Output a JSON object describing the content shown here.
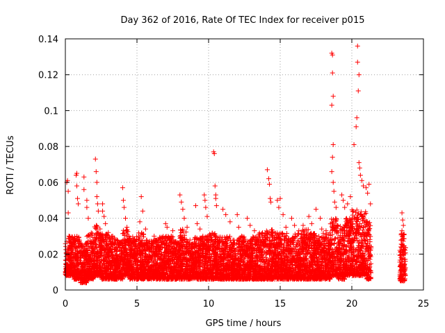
{
  "chart_data": {
    "type": "scatter",
    "title": "Day 362 of 2016, Rate Of TEC Index for receiver p015",
    "xlabel": "GPS time / hours",
    "ylabel": "ROTI / TECUs",
    "xlim": [
      0,
      25
    ],
    "ylim": [
      0,
      0.14
    ],
    "x_ticks": [
      0,
      5,
      10,
      15,
      20,
      25
    ],
    "x_tick_labels": [
      "0",
      "5",
      "10",
      "15",
      "20",
      "25"
    ],
    "y_ticks": [
      0,
      0.02,
      0.04,
      0.06,
      0.08,
      0.1,
      0.12,
      0.14
    ],
    "y_tick_labels": [
      "0",
      "0.02",
      "0.04",
      "0.06",
      "0.08",
      "0.1",
      "0.12",
      "0.14"
    ],
    "grid": true,
    "marker": "+",
    "color": "#ff0000",
    "series": [
      {
        "name": "ROTI",
        "points": [
          [
            0.1,
            0.027
          ],
          [
            0.1,
            0.06
          ],
          [
            0.15,
            0.061
          ],
          [
            0.2,
            0.055
          ],
          [
            0.2,
            0.043
          ],
          [
            0.25,
            0.03
          ],
          [
            0.3,
            0.025
          ],
          [
            0.75,
            0.064
          ],
          [
            0.8,
            0.065
          ],
          [
            0.8,
            0.058
          ],
          [
            0.9,
            0.048
          ],
          [
            0.85,
            0.051
          ],
          [
            1.3,
            0.063
          ],
          [
            1.3,
            0.056
          ],
          [
            1.5,
            0.05
          ],
          [
            1.5,
            0.046
          ],
          [
            1.6,
            0.04
          ],
          [
            1.7,
            0.03
          ],
          [
            2.1,
            0.073
          ],
          [
            2.15,
            0.066
          ],
          [
            2.2,
            0.06
          ],
          [
            2.2,
            0.052
          ],
          [
            2.25,
            0.048
          ],
          [
            2.3,
            0.044
          ],
          [
            2.6,
            0.048
          ],
          [
            2.6,
            0.044
          ],
          [
            2.7,
            0.041
          ],
          [
            2.8,
            0.037
          ],
          [
            3.0,
            0.032
          ],
          [
            3.3,
            0.03
          ],
          [
            4.0,
            0.057
          ],
          [
            4.05,
            0.05
          ],
          [
            4.1,
            0.046
          ],
          [
            4.2,
            0.04
          ],
          [
            4.3,
            0.035
          ],
          [
            5.3,
            0.052
          ],
          [
            5.4,
            0.044
          ],
          [
            5.2,
            0.038
          ],
          [
            5.6,
            0.034
          ],
          [
            6.2,
            0.03
          ],
          [
            6.5,
            0.028
          ],
          [
            7.0,
            0.037
          ],
          [
            7.1,
            0.035
          ],
          [
            7.5,
            0.033
          ],
          [
            7.4,
            0.03
          ],
          [
            8.0,
            0.053
          ],
          [
            8.1,
            0.049
          ],
          [
            8.2,
            0.045
          ],
          [
            8.3,
            0.04
          ],
          [
            8.5,
            0.035
          ],
          [
            9.1,
            0.047
          ],
          [
            9.2,
            0.037
          ],
          [
            9.4,
            0.034
          ],
          [
            9.6,
            0.03
          ],
          [
            9.7,
            0.053
          ],
          [
            9.75,
            0.05
          ],
          [
            9.8,
            0.046
          ],
          [
            9.9,
            0.041
          ],
          [
            10.35,
            0.077
          ],
          [
            10.4,
            0.076
          ],
          [
            10.45,
            0.058
          ],
          [
            10.5,
            0.053
          ],
          [
            10.5,
            0.051
          ],
          [
            10.55,
            0.047
          ],
          [
            11.0,
            0.045
          ],
          [
            11.2,
            0.042
          ],
          [
            11.5,
            0.038
          ],
          [
            12.0,
            0.042
          ],
          [
            12.1,
            0.035
          ],
          [
            12.3,
            0.03
          ],
          [
            12.7,
            0.04
          ],
          [
            12.9,
            0.036
          ],
          [
            13.2,
            0.033
          ],
          [
            13.5,
            0.031
          ],
          [
            14.1,
            0.067
          ],
          [
            14.2,
            0.062
          ],
          [
            14.25,
            0.059
          ],
          [
            14.3,
            0.051
          ],
          [
            14.35,
            0.049
          ],
          [
            14.8,
            0.05
          ],
          [
            14.9,
            0.046
          ],
          [
            15.0,
            0.051
          ],
          [
            15.2,
            0.042
          ],
          [
            15.4,
            0.035
          ],
          [
            15.8,
            0.04
          ],
          [
            16.0,
            0.036
          ],
          [
            16.3,
            0.033
          ],
          [
            16.6,
            0.036
          ],
          [
            17.0,
            0.041
          ],
          [
            17.2,
            0.037
          ],
          [
            17.5,
            0.045
          ],
          [
            17.8,
            0.04
          ],
          [
            17.9,
            0.034
          ],
          [
            18.2,
            0.033
          ],
          [
            18.6,
            0.132
          ],
          [
            18.65,
            0.131
          ],
          [
            18.65,
            0.121
          ],
          [
            18.7,
            0.108
          ],
          [
            18.6,
            0.103
          ],
          [
            18.7,
            0.081
          ],
          [
            18.65,
            0.074
          ],
          [
            18.6,
            0.066
          ],
          [
            18.7,
            0.06
          ],
          [
            18.75,
            0.055
          ],
          [
            18.8,
            0.049
          ],
          [
            18.9,
            0.046
          ],
          [
            19.3,
            0.053
          ],
          [
            19.4,
            0.05
          ],
          [
            19.5,
            0.046
          ],
          [
            19.7,
            0.048
          ],
          [
            19.9,
            0.052
          ],
          [
            20.15,
            0.081
          ],
          [
            20.3,
            0.091
          ],
          [
            20.35,
            0.096
          ],
          [
            20.4,
            0.136
          ],
          [
            20.4,
            0.127
          ],
          [
            20.5,
            0.12
          ],
          [
            20.45,
            0.111
          ],
          [
            20.5,
            0.071
          ],
          [
            20.55,
            0.068
          ],
          [
            20.6,
            0.064
          ],
          [
            20.7,
            0.061
          ],
          [
            20.8,
            0.058
          ],
          [
            21.0,
            0.057
          ],
          [
            21.1,
            0.054
          ],
          [
            21.2,
            0.059
          ],
          [
            21.3,
            0.048
          ],
          [
            23.5,
            0.043
          ],
          [
            23.55,
            0.039
          ],
          [
            23.6,
            0.036
          ],
          [
            23.5,
            0.033
          ],
          [
            23.65,
            0.031
          ]
        ],
        "bands": [
          [
            0.0,
            0.2,
            0.008,
            0.028
          ],
          [
            0.2,
            0.6,
            0.008,
            0.03
          ],
          [
            0.6,
            1.0,
            0.006,
            0.03
          ],
          [
            1.0,
            1.5,
            0.004,
            0.026
          ],
          [
            1.5,
            2.0,
            0.006,
            0.032
          ],
          [
            2.0,
            2.5,
            0.008,
            0.036
          ],
          [
            2.5,
            3.0,
            0.006,
            0.032
          ],
          [
            3.0,
            3.5,
            0.006,
            0.03
          ],
          [
            3.5,
            4.0,
            0.006,
            0.028
          ],
          [
            4.0,
            4.5,
            0.008,
            0.034
          ],
          [
            4.5,
            5.0,
            0.006,
            0.03
          ],
          [
            5.0,
            5.5,
            0.006,
            0.032
          ],
          [
            5.5,
            6.0,
            0.006,
            0.028
          ],
          [
            6.0,
            6.5,
            0.006,
            0.028
          ],
          [
            6.5,
            7.0,
            0.006,
            0.03
          ],
          [
            7.0,
            7.5,
            0.006,
            0.03
          ],
          [
            7.5,
            8.0,
            0.006,
            0.028
          ],
          [
            8.0,
            8.5,
            0.006,
            0.034
          ],
          [
            8.5,
            9.0,
            0.006,
            0.028
          ],
          [
            9.0,
            9.5,
            0.006,
            0.03
          ],
          [
            9.5,
            10.0,
            0.006,
            0.03
          ],
          [
            10.0,
            10.5,
            0.006,
            0.032
          ],
          [
            10.5,
            11.0,
            0.006,
            0.03
          ],
          [
            11.0,
            11.5,
            0.006,
            0.03
          ],
          [
            11.5,
            12.0,
            0.006,
            0.028
          ],
          [
            12.0,
            12.5,
            0.006,
            0.03
          ],
          [
            12.5,
            13.0,
            0.006,
            0.028
          ],
          [
            13.0,
            13.5,
            0.006,
            0.03
          ],
          [
            13.5,
            14.0,
            0.006,
            0.032
          ],
          [
            14.0,
            14.5,
            0.006,
            0.034
          ],
          [
            14.5,
            15.0,
            0.006,
            0.032
          ],
          [
            15.0,
            15.5,
            0.006,
            0.032
          ],
          [
            15.5,
            16.0,
            0.006,
            0.03
          ],
          [
            16.0,
            16.5,
            0.006,
            0.032
          ],
          [
            16.5,
            17.0,
            0.006,
            0.034
          ],
          [
            17.0,
            17.5,
            0.006,
            0.032
          ],
          [
            17.5,
            18.0,
            0.006,
            0.03
          ],
          [
            18.0,
            18.5,
            0.006,
            0.032
          ],
          [
            18.5,
            19.0,
            0.008,
            0.04
          ],
          [
            19.0,
            19.5,
            0.006,
            0.036
          ],
          [
            19.5,
            20.0,
            0.008,
            0.04
          ],
          [
            20.0,
            20.5,
            0.008,
            0.046
          ],
          [
            20.5,
            21.0,
            0.008,
            0.044
          ],
          [
            21.0,
            21.35,
            0.006,
            0.04
          ],
          [
            23.35,
            23.75,
            0.005,
            0.032
          ]
        ]
      }
    ]
  }
}
